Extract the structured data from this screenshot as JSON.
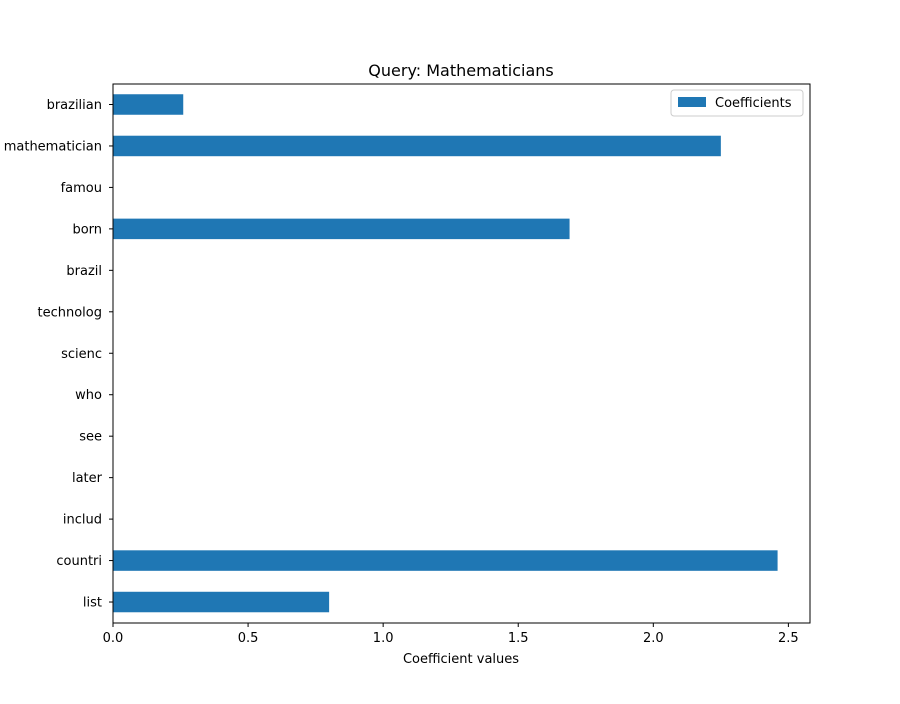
{
  "chart_data": {
    "type": "bar",
    "orientation": "horizontal",
    "title": "Query: Mathematicians",
    "xlabel": "Coefficient values",
    "ylabel": "",
    "xlim": [
      0,
      2.58
    ],
    "xticks": [
      0.0,
      0.5,
      1.0,
      1.5,
      2.0,
      2.5
    ],
    "xtick_labels": [
      "0.0",
      "0.5",
      "1.0",
      "1.5",
      "2.0",
      "2.5"
    ],
    "categories": [
      "brazilian",
      "mathematician",
      "famou",
      "born",
      "brazil",
      "technolog",
      "scienc",
      "who",
      "see",
      "later",
      "includ",
      "countri",
      "list"
    ],
    "series": [
      {
        "name": "Coefficients",
        "color": "#1f77b4",
        "values": [
          0.26,
          2.25,
          0,
          1.69,
          0,
          0,
          0,
          0,
          0,
          0,
          0,
          2.46,
          0.8
        ]
      }
    ],
    "grid": false,
    "legend_position": "top-right"
  }
}
